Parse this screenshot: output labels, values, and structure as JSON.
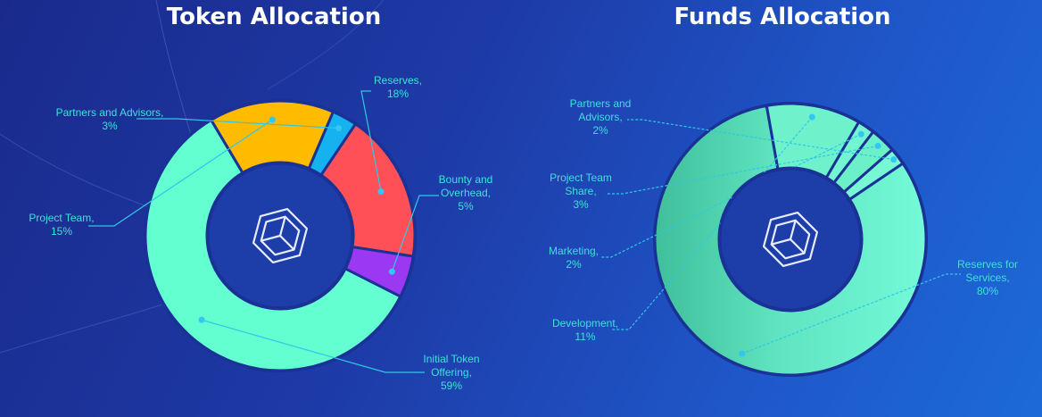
{
  "colors": {
    "label_text": "#3fe0d8",
    "leader_line": "#2fc7e6",
    "dot": "#32c6f0",
    "ring_edge": "#1a3196",
    "center_fill": "#1d3ea8",
    "logo_stroke": "#e8ecff"
  },
  "logo": {
    "left": "hexagon-cube-logo",
    "right": "hexagon-cube-logo"
  },
  "chart_data": [
    {
      "type": "pie",
      "title": "Token Allocation",
      "start_angle_deg": -56,
      "slices": [
        {
          "name": "Reserves",
          "value": 18,
          "label": [
            "Reserves,",
            "18%"
          ],
          "color": "#ff5057"
        },
        {
          "name": "Bounty and Overhead",
          "value": 5,
          "label": [
            "Bounty and",
            "Overhead,",
            "5%"
          ],
          "color": "#9a38f2"
        },
        {
          "name": "Initial Token Offering",
          "value": 59,
          "label": [
            "Initial Token",
            "Offering,",
            "59%"
          ],
          "color": "#64ffd0"
        },
        {
          "name": "Project Team",
          "value": 15,
          "label": [
            "Project Team,",
            "15%"
          ],
          "color": "#ffbb00"
        },
        {
          "name": "Partners and Advisors",
          "value": 3,
          "label": [
            "Partners and Advisors,",
            "3%"
          ],
          "color": "#15b2ef"
        }
      ]
    },
    {
      "type": "pie",
      "title": "Funds Allocation",
      "start_angle_deg": -34,
      "slices": [
        {
          "name": "Reserves for Services",
          "value": 80,
          "label": [
            "Reserves for",
            "Services,",
            "80%"
          ],
          "color": "#5fe3c0"
        },
        {
          "name": "Development",
          "value": 11,
          "label": [
            "Development,",
            "11%"
          ],
          "color": "#6ff2cc"
        },
        {
          "name": "Marketing",
          "value": 2,
          "label": [
            "Marketing,",
            "2%"
          ],
          "color": "#74f5d2"
        },
        {
          "name": "Project Team Share",
          "value": 3,
          "label": [
            "Project Team",
            "Share,",
            "3%"
          ],
          "color": "#6cf0c8"
        },
        {
          "name": "Partners and Advisors",
          "value": 2,
          "label": [
            "Partners and",
            "Advisors,",
            "2%"
          ],
          "color": "#78f7d4"
        }
      ]
    }
  ]
}
